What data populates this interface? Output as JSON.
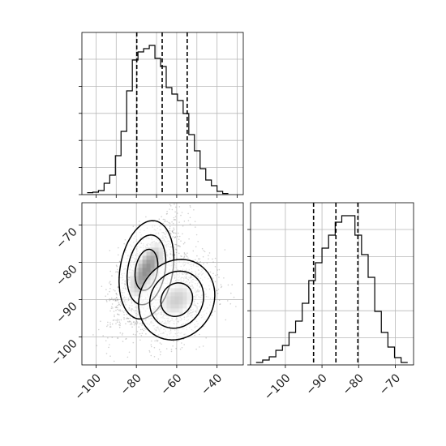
{
  "chart_data": [
    {
      "type": "histogram",
      "variable_index": 0,
      "bin_edges": [
        -104.4,
        -101.6,
        -98.8,
        -96.0,
        -93.2,
        -90.4,
        -87.6,
        -84.8,
        -82.0,
        -79.2,
        -76.4,
        -73.6,
        -70.8,
        -68.0,
        -65.2,
        -62.4,
        -59.6,
        -56.8,
        -54.0,
        -51.2,
        -48.4,
        -45.6,
        -42.8,
        -40.0,
        -37.2,
        -34.4
      ],
      "counts": [
        0.012,
        0.015,
        0.025,
        0.07,
        0.12,
        0.24,
        0.39,
        0.64,
        0.83,
        0.88,
        0.9,
        0.92,
        0.84,
        0.79,
        0.66,
        0.62,
        0.58,
        0.5,
        0.37,
        0.27,
        0.16,
        0.09,
        0.055,
        0.02,
        0.007
      ],
      "quantile_lines": [
        -79.8,
        -67.2,
        -54.8
      ],
      "xlim": [
        -107,
        -27
      ],
      "ylim": [
        0,
        1.0
      ],
      "grid": true,
      "xtick_labels_shown": false,
      "ytick_labels_shown": false
    },
    {
      "type": "scatter",
      "subtype": "2d-density-contours",
      "variables": [
        0,
        1
      ],
      "xlim": [
        -107,
        -27
      ],
      "ylim": [
        -107.5,
        -64
      ],
      "x_ticks": [
        -100,
        -80,
        -60,
        -40
      ],
      "y_ticks": [
        -70,
        -80,
        -90,
        -100
      ],
      "clusters": [
        {
          "x_mean": -75,
          "y_mean": -82,
          "x_sd": 6.5,
          "y_sd": 5.5,
          "corr": 0.65,
          "weight": 0.55
        },
        {
          "x_mean": -60,
          "y_mean": -90,
          "x_sd": 8,
          "y_sd": 4.5,
          "corr": 0.25,
          "weight": 0.45
        }
      ],
      "contour_levels": 3,
      "grid": true
    },
    {
      "type": "histogram",
      "variable_index": 1,
      "bin_edges": [
        -108.0,
        -106.2,
        -104.4,
        -102.6,
        -100.8,
        -99.0,
        -97.2,
        -95.4,
        -93.6,
        -91.8,
        -90.0,
        -88.2,
        -86.4,
        -84.6,
        -82.8,
        -81.0,
        -79.2,
        -77.4,
        -75.6,
        -73.8,
        -72.0,
        -70.2,
        -68.4,
        -66.6
      ],
      "counts": [
        0.015,
        0.03,
        0.05,
        0.09,
        0.12,
        0.2,
        0.27,
        0.38,
        0.52,
        0.63,
        0.72,
        0.8,
        0.88,
        0.92,
        0.92,
        0.8,
        0.68,
        0.54,
        0.33,
        0.2,
        0.11,
        0.045,
        0.015
      ],
      "quantile_lines": [
        -92.3,
        -86.2,
        -80.2
      ],
      "xlim": [
        -109.5,
        -65
      ],
      "ylim": [
        0,
        1.0
      ],
      "x_ticks": [
        -100,
        -90,
        -80,
        -70
      ],
      "grid": true,
      "ytick_labels_shown": false
    }
  ]
}
